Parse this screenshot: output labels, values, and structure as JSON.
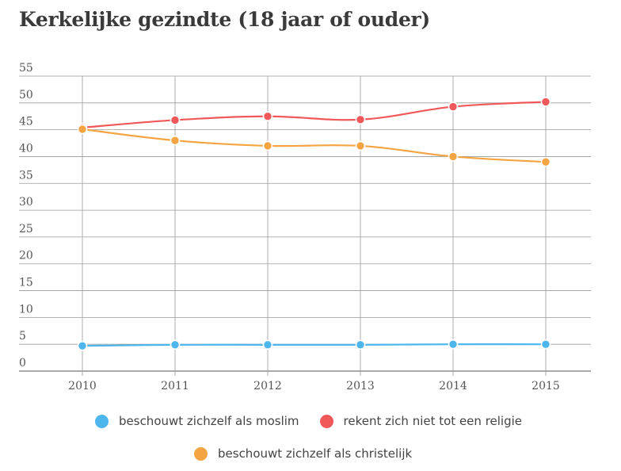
{
  "chart_data": {
    "type": "line",
    "title": "Kerkelijke gezindte (18 jaar of ouder)",
    "xlabel": "",
    "ylabel": "",
    "categories": [
      "2010",
      "2011",
      "2012",
      "2013",
      "2014",
      "2015"
    ],
    "ylim": [
      0,
      55
    ],
    "yticks": [
      "0",
      "5",
      "10",
      "15",
      "20",
      "25",
      "30",
      "35",
      "40",
      "45",
      "50",
      "55"
    ],
    "grid": true,
    "legend_position": "bottom",
    "series": [
      {
        "name": "beschouwt zichzelf als moslim",
        "color": "#4db6ec",
        "values": [
          4.7,
          4.9,
          4.9,
          4.9,
          5.0,
          5.0
        ]
      },
      {
        "name": "rekent zich niet tot een religie",
        "color": "#f0585a",
        "values": [
          45.4,
          46.8,
          47.5,
          46.9,
          49.3,
          50.2
        ]
      },
      {
        "name": "beschouwt zichzelf als christelijk",
        "color": "#f5a442",
        "values": [
          45.1,
          43.0,
          42.0,
          42.0,
          40.0,
          39.0
        ]
      }
    ]
  }
}
